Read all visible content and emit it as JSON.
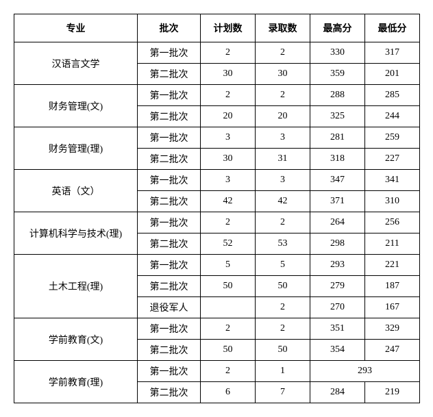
{
  "table": {
    "headers": {
      "major": "专业",
      "batch": "批次",
      "plan": "计划数",
      "admit": "录取数",
      "max": "最高分",
      "min": "最低分"
    },
    "majors": [
      {
        "name": "汉语言文学",
        "rows": [
          {
            "batch": "第一批次",
            "plan": "2",
            "admit": "2",
            "max": "330",
            "min": "317"
          },
          {
            "batch": "第二批次",
            "plan": "30",
            "admit": "30",
            "max": "359",
            "min": "201"
          }
        ]
      },
      {
        "name": "财务管理(文)",
        "rows": [
          {
            "batch": "第一批次",
            "plan": "2",
            "admit": "2",
            "max": "288",
            "min": "285"
          },
          {
            "batch": "第二批次",
            "plan": "20",
            "admit": "20",
            "max": "325",
            "min": "244"
          }
        ]
      },
      {
        "name": "财务管理(理)",
        "rows": [
          {
            "batch": "第一批次",
            "plan": "3",
            "admit": "3",
            "max": "281",
            "min": "259"
          },
          {
            "batch": "第二批次",
            "plan": "30",
            "admit": "31",
            "max": "318",
            "min": "227"
          }
        ]
      },
      {
        "name": "英语（文）",
        "rows": [
          {
            "batch": "第一批次",
            "plan": "3",
            "admit": "3",
            "max": "347",
            "min": "341"
          },
          {
            "batch": "第二批次",
            "plan": "42",
            "admit": "42",
            "max": "371",
            "min": "310"
          }
        ]
      },
      {
        "name": "计算机科学与技术(理)",
        "rows": [
          {
            "batch": "第一批次",
            "plan": "2",
            "admit": "2",
            "max": "264",
            "min": "256"
          },
          {
            "batch": "第二批次",
            "plan": "52",
            "admit": "53",
            "max": "298",
            "min": "211"
          }
        ]
      },
      {
        "name": "土木工程(理)",
        "rows": [
          {
            "batch": "第一批次",
            "plan": "5",
            "admit": "5",
            "max": "293",
            "min": "221"
          },
          {
            "batch": "第二批次",
            "plan": "50",
            "admit": "50",
            "max": "279",
            "min": "187"
          },
          {
            "batch": "退役军人",
            "plan": "",
            "admit": "2",
            "max": "270",
            "min": "167"
          }
        ]
      },
      {
        "name": "学前教育(文)",
        "rows": [
          {
            "batch": "第一批次",
            "plan": "2",
            "admit": "2",
            "max": "351",
            "min": "329"
          },
          {
            "batch": "第二批次",
            "plan": "50",
            "admit": "50",
            "max": "354",
            "min": "247"
          }
        ]
      },
      {
        "name": "学前教育(理)",
        "rows": [
          {
            "batch": "第一批次",
            "plan": "2",
            "admit": "1",
            "merged": "293"
          },
          {
            "batch": "第二批次",
            "plan": "6",
            "admit": "7",
            "max": "284",
            "min": "219"
          }
        ]
      }
    ]
  },
  "styles": {
    "border_color": "#000000",
    "background_color": "#ffffff",
    "text_color": "#000000",
    "header_fontsize": 14,
    "cell_fontsize": 14,
    "header_fontweight": "bold",
    "cell_fontweight": "normal",
    "header_row_height": 40,
    "data_row_height": 30,
    "col_widths": {
      "major": 180,
      "batch": 92,
      "plan": 80,
      "admit": 80,
      "max": 80,
      "min": 80
    }
  }
}
